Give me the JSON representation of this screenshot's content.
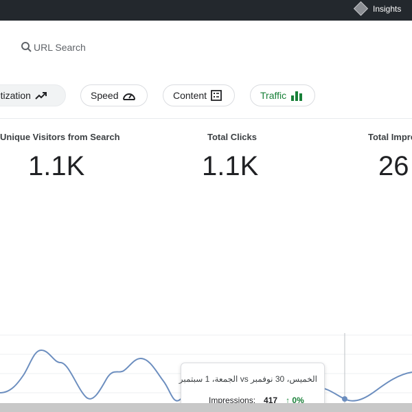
{
  "topbar": {
    "insights_label": "Insights"
  },
  "search": {
    "placeholder": "URL Search"
  },
  "tabs": [
    {
      "label": "netization",
      "icon": "trending-up-icon"
    },
    {
      "label": "Speed",
      "icon": "speedometer-icon"
    },
    {
      "label": "Content",
      "icon": "list-icon"
    },
    {
      "label": "Traffic",
      "icon": "bar-chart-icon"
    }
  ],
  "metrics": [
    {
      "label": "Unique Visitors from Search",
      "value": "1.1K"
    },
    {
      "label": "Total Clicks",
      "value": "1.1K"
    },
    {
      "label": "Total Impre",
      "value": "26"
    }
  ],
  "tooltip": {
    "date": "الخميس، 30 نوفمبر vs الجمعة، 1 سبتمبر",
    "metric": "Impressions:",
    "value": "417",
    "change": "↑ 0%"
  },
  "colors": {
    "line": "#6c8ebf",
    "accent_green": "#188038",
    "topbar": "#23282d"
  }
}
